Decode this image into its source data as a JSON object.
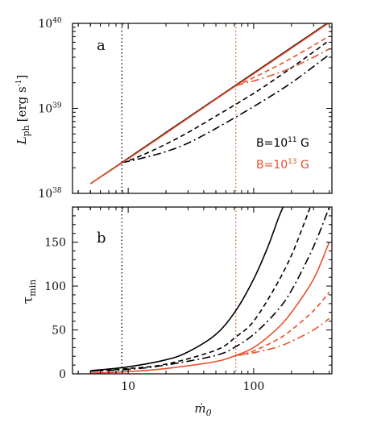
{
  "colors": {
    "black": "#000000",
    "orange": "#e8502a"
  },
  "chart_data": [
    {
      "type": "line",
      "panel_label": "a",
      "xscale": "log",
      "yscale": "log",
      "xlim": [
        3.6,
        420
      ],
      "ylim": [
        1e+38,
        1e+40
      ],
      "ylabel_main": "L",
      "ylabel_sub": "ph",
      "ylabel_unit": "[erg s",
      "ylabel_unit_sup": "-1",
      "ylabel_unit_end": "]",
      "yticks": [
        {
          "value": 1e+38,
          "base": "10",
          "exp": "38"
        },
        {
          "value": 1e+39,
          "base": "10",
          "exp": "39"
        },
        {
          "value": 1e+40,
          "base": "10",
          "exp": "40"
        }
      ],
      "legend": [
        {
          "base": "B=10",
          "exp": "11",
          "unit": " G",
          "color": "#000000"
        },
        {
          "base": "B=10",
          "exp": "13",
          "unit": " G",
          "color": "#e8502a"
        }
      ],
      "vlines": [
        {
          "x": 8.9,
          "color": "#000000"
        },
        {
          "x": 72,
          "color": "#e8502a"
        }
      ],
      "series": [
        {
          "color": "#000000",
          "dash": "solid",
          "x": [
            5,
            8.9,
            20,
            50,
            100,
            200,
            400
          ],
          "y": [
            1.3e+38,
            2.3e+38,
            5.2e+38,
            1.3e+39,
            2.6e+39,
            5.2e+39,
            1.04e+40
          ]
        },
        {
          "color": "#000000",
          "dash": "dash",
          "x": [
            8.9,
            11,
            15,
            20,
            30,
            50,
            100,
            200,
            400
          ],
          "y": [
            2.3e+38,
            2.55e+38,
            3.1e+38,
            3.8e+38,
            5.2e+38,
            8.1e+38,
            1.5e+39,
            3e+39,
            6.3e+39
          ]
        },
        {
          "color": "#000000",
          "dash": "dashdot",
          "x": [
            8.9,
            11,
            15,
            20,
            30,
            50,
            100,
            200,
            400
          ],
          "y": [
            2.3e+38,
            2.45e+38,
            2.75e+38,
            3.1e+38,
            3.9e+38,
            5.8e+38,
            1.05e+39,
            2e+39,
            4.3e+39
          ]
        },
        {
          "color": "#e8502a",
          "dash": "solid",
          "x": [
            5,
            10,
            20,
            50,
            72,
            100,
            200,
            400
          ],
          "y": [
            1.3e+38,
            2.55e+38,
            5.1e+38,
            1.28e+39,
            1.84e+39,
            2.55e+39,
            5.1e+39,
            1.02e+40
          ]
        },
        {
          "color": "#e8502a",
          "dash": "dash",
          "x": [
            72,
            85,
            100,
            150,
            200,
            300,
            400
          ],
          "y": [
            1.84e+39,
            2.05e+39,
            2.3e+39,
            3.1e+39,
            3.9e+39,
            5.5e+39,
            7.1e+39
          ]
        },
        {
          "color": "#e8502a",
          "dash": "dashdot",
          "x": [
            72,
            85,
            100,
            150,
            200,
            300,
            400
          ],
          "y": [
            1.84e+39,
            1.98e+39,
            2.1e+39,
            2.55e+39,
            3e+39,
            4e+39,
            5e+39
          ]
        }
      ]
    },
    {
      "type": "line",
      "panel_label": "b",
      "xscale": "log",
      "yscale": "linear",
      "xlim": [
        3.6,
        420
      ],
      "ylim": [
        0,
        190
      ],
      "ylabel_main": "τ",
      "ylabel_sub": "min",
      "xlabel": "ṁ",
      "xlabel_sub": "0",
      "yticks": [
        0,
        50,
        100,
        150
      ],
      "xticks": [
        {
          "value": 10,
          "label": "10"
        },
        {
          "value": 100,
          "label": "100"
        }
      ],
      "vlines": [
        {
          "x": 8.9,
          "color": "#000000"
        },
        {
          "x": 72,
          "color": "#e8502a"
        }
      ],
      "series": [
        {
          "color": "#000000",
          "dash": "solid",
          "x": [
            5,
            10,
            20,
            30,
            50,
            72,
            100,
            130,
            160,
            185
          ],
          "y": [
            3.5,
            8,
            16,
            25,
            45,
            72,
            108,
            145,
            180,
            200
          ]
        },
        {
          "color": "#000000",
          "dash": "dash",
          "x": [
            5,
            10,
            20,
            50,
            72,
            100,
            150,
            200,
            250,
            300
          ],
          "y": [
            3,
            6,
            11,
            27,
            42,
            60,
            100,
            135,
            170,
            200
          ]
        },
        {
          "color": "#000000",
          "dash": "dashdot",
          "x": [
            5,
            10,
            20,
            50,
            72,
            100,
            150,
            200,
            300,
            400
          ],
          "y": [
            3,
            5,
            10,
            21,
            31,
            45,
            70,
            95,
            145,
            190
          ]
        },
        {
          "color": "#e8502a",
          "dash": "solid",
          "x": [
            5,
            10,
            20,
            50,
            72,
            100,
            150,
            200,
            300,
            400
          ],
          "y": [
            0.8,
            2.5,
            6,
            14,
            21,
            30,
            50,
            70,
            108,
            150
          ]
        },
        {
          "color": "#e8502a",
          "dash": "dash",
          "x": [
            72,
            85,
            100,
            150,
            200,
            300,
            400
          ],
          "y": [
            21,
            23,
            26,
            38,
            50,
            72,
            93
          ]
        },
        {
          "color": "#e8502a",
          "dash": "dashdot",
          "x": [
            72,
            85,
            100,
            150,
            200,
            300,
            400
          ],
          "y": [
            21,
            22,
            24,
            30,
            37,
            50,
            63
          ]
        }
      ]
    }
  ]
}
